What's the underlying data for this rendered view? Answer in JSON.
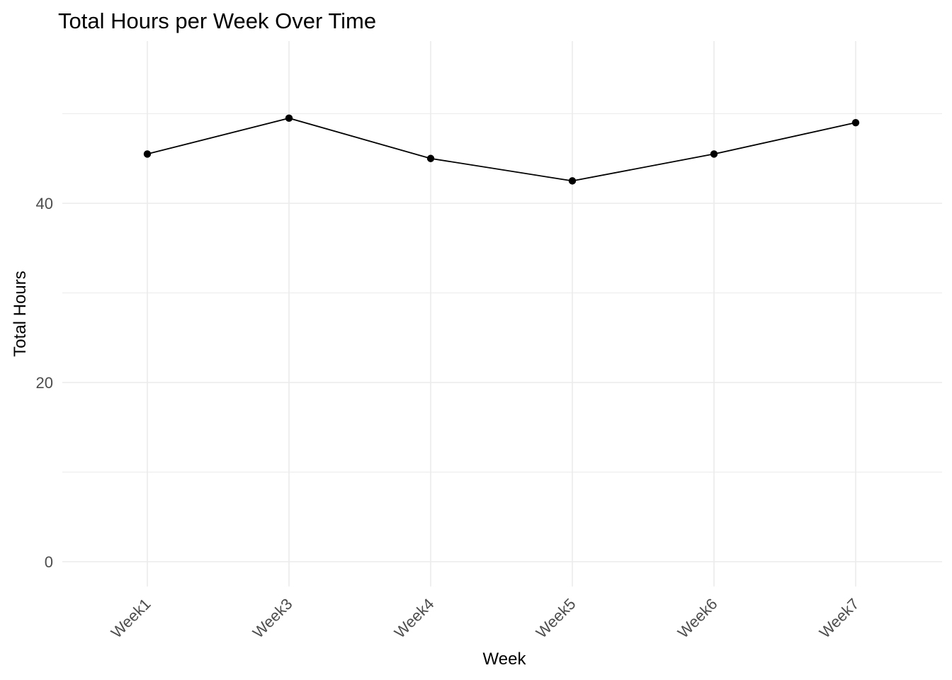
{
  "chart_data": {
    "type": "line",
    "title": "Total Hours per Week Over Time",
    "xlabel": "Week",
    "ylabel": "Total Hours",
    "categories": [
      "Week1",
      "Week3",
      "Week4",
      "Week5",
      "Week6",
      "Week7"
    ],
    "series": [
      {
        "name": "Total Hours",
        "values": [
          45.5,
          49.5,
          45.0,
          42.5,
          45.5,
          49.0
        ]
      }
    ],
    "ylim": [
      0,
      55
    ],
    "y_major_ticks": [
      0,
      20,
      40
    ],
    "y_minor_gridlines": [
      10,
      30,
      50
    ],
    "x_tick_angle_deg": 45,
    "grid": "on",
    "legend": "none",
    "colors": {
      "line": "#000000",
      "point": "#000000",
      "gridline_major": "#ebebeb",
      "gridline_minor": "#ebebeb",
      "tick_label": "#4d4d4d",
      "axis_title": "#000000",
      "title": "#000000",
      "background": "#ffffff"
    }
  }
}
